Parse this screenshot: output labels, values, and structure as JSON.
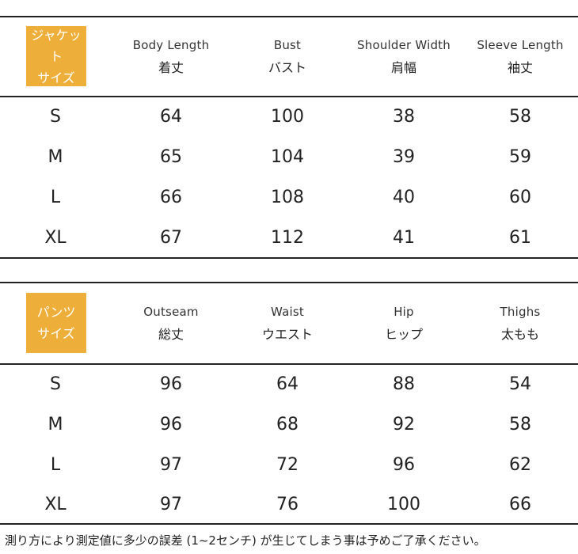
{
  "jacket": {
    "badge": [
      "ジャケット",
      "サイズ"
    ],
    "headers": [
      {
        "en": "Body Length",
        "jp": "着丈"
      },
      {
        "en": "Bust",
        "jp": "バスト"
      },
      {
        "en": "Shoulder Width",
        "jp": "肩幅"
      },
      {
        "en": "Sleeve Length",
        "jp": "袖丈"
      }
    ],
    "rows": [
      [
        "S",
        "64",
        "100",
        "38",
        "58"
      ],
      [
        "M",
        "65",
        "104",
        "39",
        "59"
      ],
      [
        "L",
        "66",
        "108",
        "40",
        "60"
      ],
      [
        "XL",
        "67",
        "112",
        "41",
        "61"
      ]
    ]
  },
  "pants": {
    "badge": [
      "パンツ",
      "サイズ"
    ],
    "headers": [
      {
        "en": "Outseam",
        "jp": "総丈"
      },
      {
        "en": "Waist",
        "jp": "ウエスト"
      },
      {
        "en": "Hip",
        "jp": "ヒップ"
      },
      {
        "en": "Thighs",
        "jp": "太もも"
      }
    ],
    "rows": [
      [
        "S",
        "96",
        "64",
        "88",
        "54"
      ],
      [
        "M",
        "96",
        "68",
        "92",
        "58"
      ],
      [
        "L",
        "97",
        "72",
        "96",
        "62"
      ],
      [
        "XL",
        "97",
        "76",
        "100",
        "66"
      ]
    ]
  },
  "note": "測り方により測定値に多少の誤差 (1~2センチ) が生じてしまう事は予めご了承ください。",
  "colors": {
    "badge": "#EDAE3A",
    "rule": "#222222"
  }
}
